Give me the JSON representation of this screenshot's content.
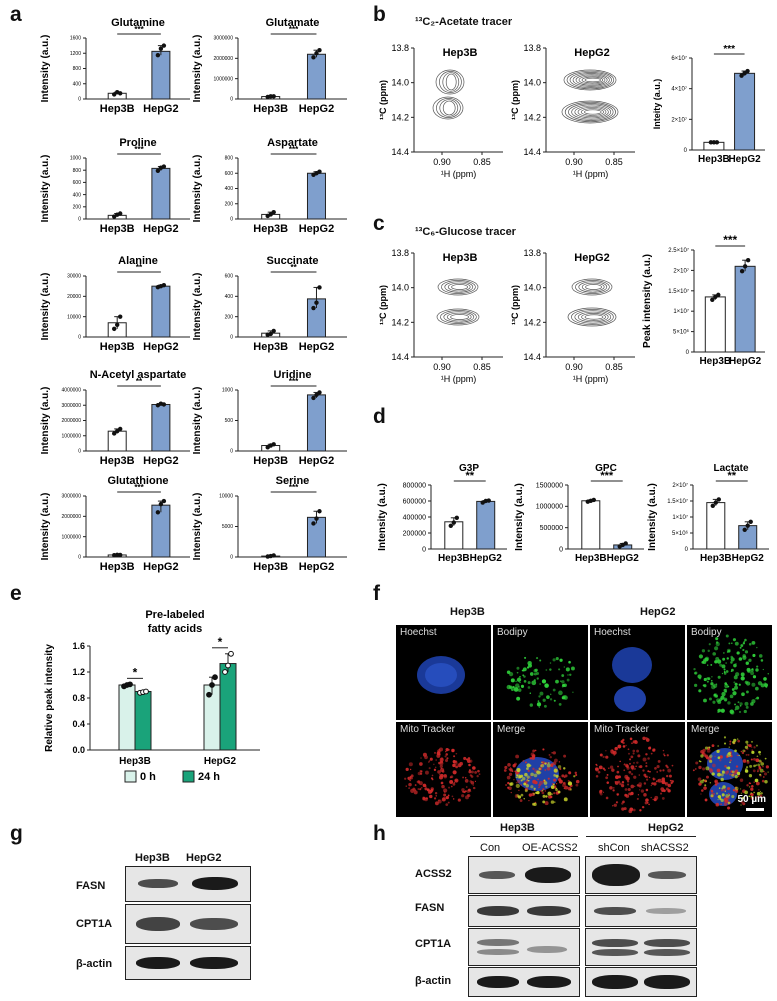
{
  "panels": {
    "a": "a",
    "b": "b",
    "c": "c",
    "d": "d",
    "e": "e",
    "f": "f",
    "g": "g",
    "h": "h"
  },
  "colors": {
    "hep3b": "#ffffff",
    "hepg2": "#7f9fcd",
    "green": "#1aa37a",
    "lightgreen": "#d9f2ea"
  },
  "groups": [
    "Hep3B",
    "HepG2"
  ],
  "chart_data": [
    {
      "id": "glutamine",
      "type": "bar",
      "title": "Glutamine",
      "ylabel": "Intensity (a.u.)",
      "categories": [
        "Hep3B",
        "HepG2"
      ],
      "values": [
        150,
        1250
      ],
      "points": [
        [
          120,
          180,
          150
        ],
        [
          1150,
          1320,
          1400
        ]
      ],
      "ylim": [
        0,
        1600
      ],
      "yticks": [
        "0",
        "400",
        "800",
        "1200",
        "1600"
      ],
      "sig": "***"
    },
    {
      "id": "glutamate",
      "type": "bar",
      "title": "Glutamate",
      "ylabel": "Intensity (a.u.)",
      "categories": [
        "Hep3B",
        "HepG2"
      ],
      "values": [
        120000,
        2200000
      ],
      "points": [
        [
          100000,
          130000,
          130000
        ],
        [
          2050000,
          2250000,
          2400000
        ]
      ],
      "ylim": [
        0,
        3000000
      ],
      "yticks": [
        "0",
        "1000000",
        "2000000",
        "3000000"
      ],
      "sig": "***"
    },
    {
      "id": "proline",
      "type": "bar",
      "title": "Proline",
      "ylabel": "Intensity (a.u.)",
      "categories": [
        "Hep3B",
        "HepG2"
      ],
      "values": [
        60,
        830
      ],
      "points": [
        [
          40,
          70,
          90
        ],
        [
          790,
          840,
          860
        ]
      ],
      "ylim": [
        0,
        1000
      ],
      "yticks": [
        "0",
        "200",
        "400",
        "600",
        "800",
        "1000"
      ],
      "sig": "***"
    },
    {
      "id": "aspartate",
      "type": "bar",
      "title": "Aspartate",
      "ylabel": "Intensity (a.u.)",
      "categories": [
        "Hep3B",
        "HepG2"
      ],
      "values": [
        60,
        600
      ],
      "points": [
        [
          40,
          60,
          90
        ],
        [
          580,
          600,
          620
        ]
      ],
      "ylim": [
        0,
        800
      ],
      "yticks": [
        "0",
        "200",
        "400",
        "600",
        "800"
      ],
      "sig": "***"
    },
    {
      "id": "alanine",
      "type": "bar",
      "title": "Alanine",
      "ylabel": "Intensity (a.u.)",
      "categories": [
        "Hep3B",
        "HepG2"
      ],
      "values": [
        7000,
        25000
      ],
      "points": [
        [
          4000,
          6000,
          10000
        ],
        [
          24500,
          25000,
          25500
        ]
      ],
      "ylim": [
        0,
        30000
      ],
      "yticks": [
        "0",
        "10000",
        "20000",
        "30000"
      ],
      "sig": "**"
    },
    {
      "id": "succinate",
      "type": "bar",
      "title": "Succinate",
      "ylabel": "Intensity (a.u.)",
      "categories": [
        "Hep3B",
        "HepG2"
      ],
      "values": [
        50,
        500
      ],
      "points": [
        [
          30,
          40,
          80
        ],
        [
          380,
          450,
          650
        ]
      ],
      "ylim": [
        0,
        800
      ],
      "yticks": [
        "0",
        "200",
        "400",
        "600"
      ],
      "sig": "**"
    },
    {
      "id": "naa",
      "type": "bar",
      "title": "N-Acetyl  aspartate",
      "ylabel": "Intensity (a.u.)",
      "categories": [
        "Hep3B",
        "HepG2"
      ],
      "values": [
        1300000,
        3050000
      ],
      "points": [
        [
          1150000,
          1300000,
          1450000
        ],
        [
          3000000,
          3100000,
          3050000
        ]
      ],
      "ylim": [
        0,
        4000000
      ],
      "yticks": [
        "0",
        "1000000",
        "2000000",
        "3000000",
        "4000000"
      ],
      "sig": "**"
    },
    {
      "id": "uridine",
      "type": "bar",
      "title": "Uridine",
      "ylabel": "Intensity (a.u.)",
      "categories": [
        "Hep3B",
        "HepG2"
      ],
      "values": [
        90,
        920
      ],
      "points": [
        [
          60,
          90,
          110
        ],
        [
          870,
          920,
          960
        ]
      ],
      "ylim": [
        0,
        1000
      ],
      "yticks": [
        "0",
        "500",
        "1000"
      ],
      "sig": "***"
    },
    {
      "id": "glutathione",
      "type": "bar",
      "title": "Glutathione",
      "ylabel": "Intensity (a.u.)",
      "categories": [
        "Hep3B",
        "HepG2"
      ],
      "values": [
        100000,
        2550000
      ],
      "points": [
        [
          90000,
          110000,
          100000
        ],
        [
          2200000,
          2600000,
          2750000
        ]
      ],
      "ylim": [
        0,
        3000000
      ],
      "yticks": [
        "0",
        "1000000",
        "2000000",
        "3000000"
      ],
      "sig": "***"
    },
    {
      "id": "serine",
      "type": "bar",
      "title": "Serine",
      "ylabel": "Intensity (a.u.)",
      "categories": [
        "Hep3B",
        "HepG2"
      ],
      "values": [
        150,
        6500
      ],
      "points": [
        [
          80,
          150,
          250
        ],
        [
          5500,
          6300,
          7500
        ]
      ],
      "ylim": [
        0,
        10000
      ],
      "yticks": [
        "0",
        "5000",
        "10000"
      ],
      "sig": "***"
    },
    {
      "id": "acetate_bar",
      "type": "bar",
      "title": "",
      "ylabel": "Inteity (a.u.)",
      "categories": [
        "Hep3B",
        "HepG2"
      ],
      "values": [
        5000000,
        50000000
      ],
      "points": [
        [
          5000000,
          5000000,
          5000000
        ],
        [
          48500000,
          50000000,
          51500000
        ]
      ],
      "ylim": [
        0,
        60000000
      ],
      "yticks": [
        "0",
        "2×10⁷",
        "4×10⁷",
        "6×10⁷"
      ],
      "sig": "***"
    },
    {
      "id": "glucose_bar",
      "type": "bar",
      "title": "",
      "ylabel": "Peak intensity (a.u.)",
      "categories": [
        "Hep3B",
        "HepG2"
      ],
      "values": [
        13500000,
        21000000
      ],
      "points": [
        [
          12800000,
          13500000,
          14000000
        ],
        [
          19800000,
          21000000,
          22500000
        ]
      ],
      "ylim": [
        0,
        25000000
      ],
      "yticks": [
        "0",
        "5×10⁶",
        "1×10⁷",
        "1.5×10⁷",
        "2×10⁷",
        "2.5×10⁷"
      ],
      "sig": "***"
    },
    {
      "id": "g3p",
      "type": "bar",
      "title": "G3P",
      "ylabel": "Intensity (a.u.)",
      "categories": [
        "Hep3B",
        "HepG2"
      ],
      "values": [
        340000,
        595000
      ],
      "points": [
        [
          290000,
          330000,
          390000
        ],
        [
          580000,
          600000,
          605000
        ]
      ],
      "ylim": [
        0,
        800000
      ],
      "yticks": [
        "0",
        "200000",
        "400000",
        "600000",
        "800000"
      ],
      "sig": "**"
    },
    {
      "id": "gpc",
      "type": "bar",
      "title": "GPC",
      "ylabel": "Intensity (a.u.)",
      "categories": [
        "Hep3B",
        "HepG2"
      ],
      "values": [
        1130000,
        95000
      ],
      "points": [
        [
          1110000,
          1130000,
          1150000
        ],
        [
          60000,
          95000,
          130000
        ]
      ],
      "ylim": [
        0,
        1500000
      ],
      "yticks": [
        "0",
        "500000",
        "1000000",
        "1500000"
      ],
      "sig": "***"
    },
    {
      "id": "lactate",
      "type": "bar",
      "title": "Lactate",
      "ylabel": "Intensity (a.u.)",
      "categories": [
        "Hep3B",
        "HepG2"
      ],
      "values": [
        14500000,
        7300000
      ],
      "points": [
        [
          13500000,
          14500000,
          15500000
        ],
        [
          6000000,
          7300000,
          8500000
        ]
      ],
      "ylim": [
        0,
        20000000
      ],
      "yticks": [
        "0",
        "5×10⁶",
        "1×10⁷",
        "1.5×10⁷",
        "2×10⁷"
      ],
      "sig": "**"
    },
    {
      "id": "fatty_acids",
      "type": "bar",
      "title": "Pre-labeled fatty acids",
      "ylabel": "Relative peak intensity",
      "categories": [
        "Hep3B",
        "HepG2"
      ],
      "series": [
        {
          "name": "0 h",
          "values": [
            1.0,
            1.0
          ],
          "points": [
            [
              0.98,
              1.0,
              1.01
            ],
            [
              0.85,
              1.0,
              1.12
            ]
          ]
        },
        {
          "name": "24 h",
          "values": [
            0.9,
            1.33
          ],
          "points": [
            [
              0.88,
              0.89,
              0.9
            ],
            [
              1.2,
              1.3,
              1.48
            ]
          ]
        }
      ],
      "ylim": [
        0,
        1.6
      ],
      "yticks": [
        "0.0",
        "0.4",
        "0.8",
        "1.2",
        "1.6"
      ],
      "sig": [
        "*",
        "*"
      ]
    }
  ],
  "nmr_b": {
    "title": "¹³C₂-Acetate tracer",
    "panels": [
      "Hep3B",
      "HepG2"
    ],
    "xlabel": "¹H (ppm)",
    "ylabel": "¹³C (ppm)",
    "xticks": [
      "0.90",
      "0.85"
    ],
    "yticks": [
      "13.8",
      "14.0",
      "14.2",
      "14.4"
    ]
  },
  "nmr_c": {
    "title": "¹³C₆-Glucose tracer",
    "panels": [
      "Hep3B",
      "HepG2"
    ],
    "xlabel": "¹H (ppm)",
    "ylabel": "¹³C (ppm)",
    "xticks": [
      "0.90",
      "0.85"
    ],
    "yticks": [
      "13.8",
      "14.0",
      "14.2",
      "14.4"
    ]
  },
  "micro": {
    "col1": "Hep3B",
    "col2": "HepG2",
    "tiles": [
      "Hoechst",
      "Bodipy",
      "Mito Tracker",
      "Merge"
    ],
    "scale": "50 µm"
  },
  "blot_g": {
    "lanes": [
      "Hep3B",
      "HepG2"
    ],
    "rows": [
      "FASN",
      "CPT1A",
      "β-actin"
    ]
  },
  "blot_h": {
    "group1": "Hep3B",
    "group2": "HepG2",
    "lanes": [
      "Con",
      "OE-ACSS2",
      "shCon",
      "shACSS2"
    ],
    "rows": [
      "ACSS2",
      "FASN",
      "CPT1A",
      "β-actin"
    ]
  }
}
